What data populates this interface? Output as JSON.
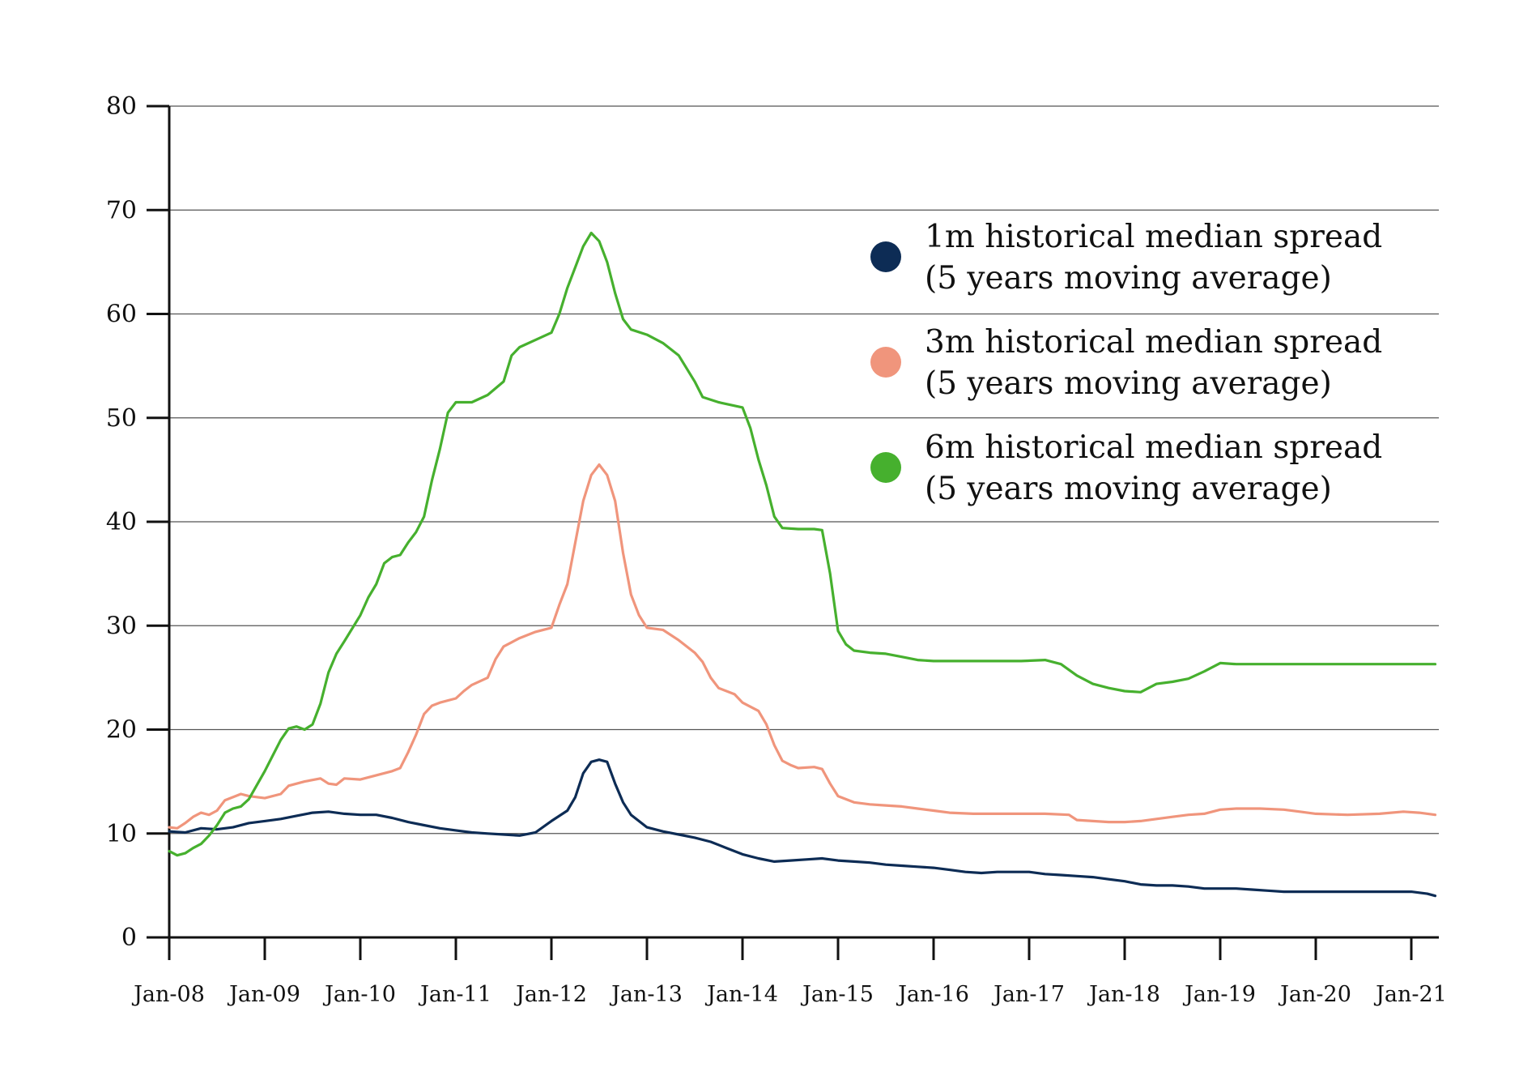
{
  "chart_data": {
    "type": "line",
    "title": "",
    "xlabel": "",
    "ylabel": "",
    "ylim": [
      0,
      80
    ],
    "yticks": [
      "0",
      "10",
      "20",
      "30",
      "40",
      "50",
      "60",
      "70",
      "80"
    ],
    "xlim": [
      "2008-01",
      "2021-04"
    ],
    "xtick_labels": [
      "Jan-08",
      "Jan-09",
      "Jan-10",
      "Jan-11",
      "Jan-12",
      "Jan-13",
      "Jan-14",
      "Jan-15",
      "Jan-16",
      "Jan-17",
      "Jan-18",
      "Jan-19",
      "Jan-20",
      "Jan-21"
    ],
    "grid": true,
    "legend_position": "top-right",
    "series": [
      {
        "name": "1m historical median spread (5 years moving average)",
        "legend_line1": "1m historical median spread",
        "legend_line2": "(5 years moving average)",
        "color": "#0d2c55",
        "points": [
          [
            "2008-01",
            10.2
          ],
          [
            "2008-03",
            10.1
          ],
          [
            "2008-05",
            10.5
          ],
          [
            "2008-07",
            10.4
          ],
          [
            "2008-09",
            10.6
          ],
          [
            "2008-11",
            11.0
          ],
          [
            "2009-01",
            11.2
          ],
          [
            "2009-03",
            11.4
          ],
          [
            "2009-05",
            11.7
          ],
          [
            "2009-07",
            12.0
          ],
          [
            "2009-09",
            12.1
          ],
          [
            "2009-11",
            11.9
          ],
          [
            "2010-01",
            11.8
          ],
          [
            "2010-03",
            11.8
          ],
          [
            "2010-05",
            11.5
          ],
          [
            "2010-07",
            11.1
          ],
          [
            "2010-09",
            10.8
          ],
          [
            "2010-11",
            10.5
          ],
          [
            "2011-01",
            10.3
          ],
          [
            "2011-03",
            10.1
          ],
          [
            "2011-05",
            10.0
          ],
          [
            "2011-07",
            9.9
          ],
          [
            "2011-09",
            9.8
          ],
          [
            "2011-11",
            10.1
          ],
          [
            "2012-01",
            11.2
          ],
          [
            "2012-03",
            12.2
          ],
          [
            "2012-04",
            13.5
          ],
          [
            "2012-05",
            15.8
          ],
          [
            "2012-06",
            16.9
          ],
          [
            "2012-07",
            17.1
          ],
          [
            "2012-08",
            16.9
          ],
          [
            "2012-09",
            14.8
          ],
          [
            "2012-10",
            13.0
          ],
          [
            "2012-11",
            11.8
          ],
          [
            "2013-01",
            10.6
          ],
          [
            "2013-03",
            10.2
          ],
          [
            "2013-05",
            9.9
          ],
          [
            "2013-07",
            9.6
          ],
          [
            "2013-09",
            9.2
          ],
          [
            "2013-11",
            8.6
          ],
          [
            "2014-01",
            8.0
          ],
          [
            "2014-03",
            7.6
          ],
          [
            "2014-05",
            7.3
          ],
          [
            "2014-07",
            7.4
          ],
          [
            "2014-09",
            7.5
          ],
          [
            "2014-11",
            7.6
          ],
          [
            "2015-01",
            7.4
          ],
          [
            "2015-03",
            7.3
          ],
          [
            "2015-05",
            7.2
          ],
          [
            "2015-07",
            7.0
          ],
          [
            "2015-09",
            6.9
          ],
          [
            "2015-11",
            6.8
          ],
          [
            "2016-01",
            6.7
          ],
          [
            "2016-03",
            6.5
          ],
          [
            "2016-05",
            6.3
          ],
          [
            "2016-07",
            6.2
          ],
          [
            "2016-09",
            6.3
          ],
          [
            "2016-11",
            6.3
          ],
          [
            "2017-01",
            6.3
          ],
          [
            "2017-03",
            6.1
          ],
          [
            "2017-05",
            6.0
          ],
          [
            "2017-07",
            5.9
          ],
          [
            "2017-09",
            5.8
          ],
          [
            "2017-11",
            5.6
          ],
          [
            "2018-01",
            5.4
          ],
          [
            "2018-03",
            5.1
          ],
          [
            "2018-05",
            5.0
          ],
          [
            "2018-07",
            5.0
          ],
          [
            "2018-09",
            4.9
          ],
          [
            "2018-11",
            4.7
          ],
          [
            "2019-01",
            4.7
          ],
          [
            "2019-03",
            4.7
          ],
          [
            "2019-05",
            4.6
          ],
          [
            "2019-07",
            4.5
          ],
          [
            "2019-09",
            4.4
          ],
          [
            "2019-11",
            4.4
          ],
          [
            "2020-01",
            4.4
          ],
          [
            "2020-05",
            4.4
          ],
          [
            "2020-09",
            4.4
          ],
          [
            "2021-01",
            4.4
          ],
          [
            "2021-03",
            4.2
          ],
          [
            "2021-04",
            4.0
          ]
        ]
      },
      {
        "name": "3m historical median spread (5 years moving average)",
        "legend_line1": "3m historical median spread",
        "legend_line2": "(5 years moving average)",
        "color": "#f0957c",
        "points": [
          [
            "2008-01",
            10.6
          ],
          [
            "2008-02",
            10.5
          ],
          [
            "2008-03",
            11.0
          ],
          [
            "2008-04",
            11.6
          ],
          [
            "2008-05",
            12.0
          ],
          [
            "2008-06",
            11.8
          ],
          [
            "2008-07",
            12.2
          ],
          [
            "2008-08",
            13.2
          ],
          [
            "2008-09",
            13.5
          ],
          [
            "2008-10",
            13.8
          ],
          [
            "2008-11",
            13.6
          ],
          [
            "2009-01",
            13.4
          ],
          [
            "2009-03",
            13.8
          ],
          [
            "2009-04",
            14.6
          ],
          [
            "2009-06",
            15.0
          ],
          [
            "2009-08",
            15.3
          ],
          [
            "2009-09",
            14.8
          ],
          [
            "2009-10",
            14.7
          ],
          [
            "2009-11",
            15.3
          ],
          [
            "2010-01",
            15.2
          ],
          [
            "2010-03",
            15.6
          ],
          [
            "2010-05",
            16.0
          ],
          [
            "2010-06",
            16.3
          ],
          [
            "2010-07",
            17.8
          ],
          [
            "2010-08",
            19.5
          ],
          [
            "2010-09",
            21.5
          ],
          [
            "2010-10",
            22.3
          ],
          [
            "2010-11",
            22.6
          ],
          [
            "2011-01",
            23.0
          ],
          [
            "2011-02",
            23.7
          ],
          [
            "2011-03",
            24.3
          ],
          [
            "2011-05",
            25.0
          ],
          [
            "2011-06",
            26.8
          ],
          [
            "2011-07",
            28.0
          ],
          [
            "2011-08",
            28.4
          ],
          [
            "2011-09",
            28.8
          ],
          [
            "2011-11",
            29.4
          ],
          [
            "2012-01",
            29.8
          ],
          [
            "2012-02",
            32.0
          ],
          [
            "2012-03",
            34.0
          ],
          [
            "2012-04",
            38.0
          ],
          [
            "2012-05",
            42.0
          ],
          [
            "2012-06",
            44.5
          ],
          [
            "2012-07",
            45.5
          ],
          [
            "2012-08",
            44.5
          ],
          [
            "2012-09",
            42.0
          ],
          [
            "2012-10",
            37.0
          ],
          [
            "2012-11",
            33.0
          ],
          [
            "2012-12",
            31.0
          ],
          [
            "2013-01",
            29.8
          ],
          [
            "2013-03",
            29.6
          ],
          [
            "2013-05",
            28.6
          ],
          [
            "2013-07",
            27.4
          ],
          [
            "2013-08",
            26.5
          ],
          [
            "2013-09",
            25.0
          ],
          [
            "2013-10",
            24.0
          ],
          [
            "2013-12",
            23.4
          ],
          [
            "2014-01",
            22.6
          ],
          [
            "2014-03",
            21.8
          ],
          [
            "2014-04",
            20.5
          ],
          [
            "2014-05",
            18.5
          ],
          [
            "2014-06",
            17.0
          ],
          [
            "2014-07",
            16.6
          ],
          [
            "2014-08",
            16.3
          ],
          [
            "2014-10",
            16.4
          ],
          [
            "2014-11",
            16.2
          ],
          [
            "2014-12",
            14.8
          ],
          [
            "2015-01",
            13.6
          ],
          [
            "2015-03",
            13.0
          ],
          [
            "2015-05",
            12.8
          ],
          [
            "2015-07",
            12.7
          ],
          [
            "2015-09",
            12.6
          ],
          [
            "2015-11",
            12.4
          ],
          [
            "2016-01",
            12.2
          ],
          [
            "2016-03",
            12.0
          ],
          [
            "2016-06",
            11.9
          ],
          [
            "2016-09",
            11.9
          ],
          [
            "2016-12",
            11.9
          ],
          [
            "2017-03",
            11.9
          ],
          [
            "2017-06",
            11.8
          ],
          [
            "2017-07",
            11.3
          ],
          [
            "2017-09",
            11.2
          ],
          [
            "2017-11",
            11.1
          ],
          [
            "2018-01",
            11.1
          ],
          [
            "2018-03",
            11.2
          ],
          [
            "2018-05",
            11.4
          ],
          [
            "2018-07",
            11.6
          ],
          [
            "2018-09",
            11.8
          ],
          [
            "2018-11",
            11.9
          ],
          [
            "2019-01",
            12.3
          ],
          [
            "2019-03",
            12.4
          ],
          [
            "2019-06",
            12.4
          ],
          [
            "2019-09",
            12.3
          ],
          [
            "2019-11",
            12.1
          ],
          [
            "2020-01",
            11.9
          ],
          [
            "2020-05",
            11.8
          ],
          [
            "2020-09",
            11.9
          ],
          [
            "2020-12",
            12.1
          ],
          [
            "2021-02",
            12.0
          ],
          [
            "2021-04",
            11.8
          ]
        ]
      },
      {
        "name": "6m historical median spread (5 years moving average)",
        "legend_line1": "6m historical median spread",
        "legend_line2": "(5 years moving average)",
        "color": "#46b02e",
        "points": [
          [
            "2008-01",
            8.3
          ],
          [
            "2008-02",
            7.9
          ],
          [
            "2008-03",
            8.1
          ],
          [
            "2008-04",
            8.6
          ],
          [
            "2008-05",
            9.0
          ],
          [
            "2008-06",
            9.8
          ],
          [
            "2008-07",
            10.8
          ],
          [
            "2008-08",
            12.0
          ],
          [
            "2008-09",
            12.4
          ],
          [
            "2008-10",
            12.6
          ],
          [
            "2008-11",
            13.3
          ],
          [
            "2009-01",
            16.0
          ],
          [
            "2009-02",
            17.5
          ],
          [
            "2009-03",
            19.0
          ],
          [
            "2009-04",
            20.1
          ],
          [
            "2009-05",
            20.3
          ],
          [
            "2009-06",
            20.0
          ],
          [
            "2009-07",
            20.5
          ],
          [
            "2009-08",
            22.5
          ],
          [
            "2009-09",
            25.5
          ],
          [
            "2009-10",
            27.3
          ],
          [
            "2009-11",
            28.5
          ],
          [
            "2010-01",
            31.0
          ],
          [
            "2010-02",
            32.7
          ],
          [
            "2010-03",
            34.0
          ],
          [
            "2010-04",
            36.0
          ],
          [
            "2010-05",
            36.6
          ],
          [
            "2010-06",
            36.8
          ],
          [
            "2010-07",
            38.0
          ],
          [
            "2010-08",
            39.0
          ],
          [
            "2010-09",
            40.5
          ],
          [
            "2010-10",
            44.0
          ],
          [
            "2010-11",
            47.0
          ],
          [
            "2010-12",
            50.5
          ],
          [
            "2011-01",
            51.5
          ],
          [
            "2011-03",
            51.5
          ],
          [
            "2011-05",
            52.2
          ],
          [
            "2011-07",
            53.5
          ],
          [
            "2011-08",
            56.0
          ],
          [
            "2011-09",
            56.8
          ],
          [
            "2011-11",
            57.5
          ],
          [
            "2012-01",
            58.2
          ],
          [
            "2012-02",
            60.0
          ],
          [
            "2012-03",
            62.5
          ],
          [
            "2012-04",
            64.5
          ],
          [
            "2012-05",
            66.5
          ],
          [
            "2012-06",
            67.8
          ],
          [
            "2012-07",
            67.0
          ],
          [
            "2012-08",
            65.0
          ],
          [
            "2012-09",
            62.0
          ],
          [
            "2012-10",
            59.5
          ],
          [
            "2012-11",
            58.5
          ],
          [
            "2013-01",
            58.0
          ],
          [
            "2013-03",
            57.2
          ],
          [
            "2013-05",
            56.0
          ],
          [
            "2013-07",
            53.5
          ],
          [
            "2013-08",
            52.0
          ],
          [
            "2013-10",
            51.5
          ],
          [
            "2014-01",
            51.0
          ],
          [
            "2014-02",
            49.0
          ],
          [
            "2014-03",
            46.0
          ],
          [
            "2014-04",
            43.5
          ],
          [
            "2014-05",
            40.5
          ],
          [
            "2014-06",
            39.4
          ],
          [
            "2014-08",
            39.3
          ],
          [
            "2014-10",
            39.3
          ],
          [
            "2014-11",
            39.2
          ],
          [
            "2014-12",
            35.0
          ],
          [
            "2015-01",
            29.5
          ],
          [
            "2015-02",
            28.2
          ],
          [
            "2015-03",
            27.6
          ],
          [
            "2015-05",
            27.4
          ],
          [
            "2015-07",
            27.3
          ],
          [
            "2015-09",
            27.0
          ],
          [
            "2015-11",
            26.7
          ],
          [
            "2016-01",
            26.6
          ],
          [
            "2016-06",
            26.6
          ],
          [
            "2016-12",
            26.6
          ],
          [
            "2017-03",
            26.7
          ],
          [
            "2017-05",
            26.3
          ],
          [
            "2017-07",
            25.2
          ],
          [
            "2017-09",
            24.4
          ],
          [
            "2017-11",
            24.0
          ],
          [
            "2018-01",
            23.7
          ],
          [
            "2018-03",
            23.6
          ],
          [
            "2018-05",
            24.4
          ],
          [
            "2018-07",
            24.6
          ],
          [
            "2018-09",
            24.9
          ],
          [
            "2018-11",
            25.6
          ],
          [
            "2019-01",
            26.4
          ],
          [
            "2019-03",
            26.3
          ],
          [
            "2019-06",
            26.3
          ],
          [
            "2019-12",
            26.3
          ],
          [
            "2020-06",
            26.3
          ],
          [
            "2020-12",
            26.3
          ],
          [
            "2021-04",
            26.3
          ]
        ]
      }
    ]
  }
}
